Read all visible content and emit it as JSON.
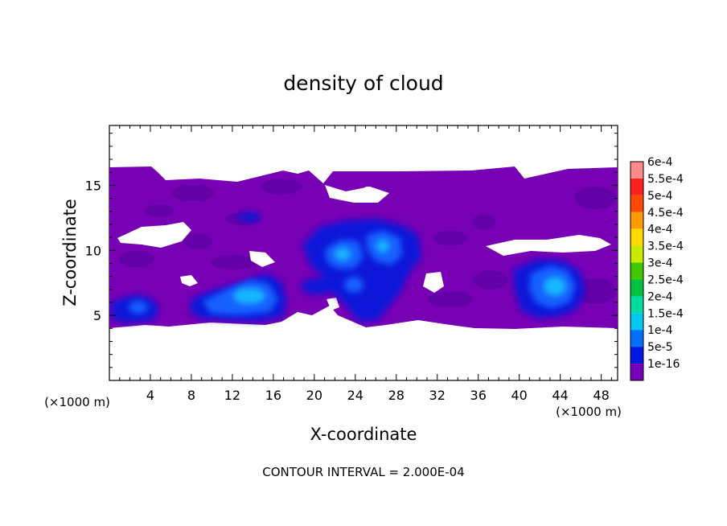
{
  "chart_data": {
    "type": "heatmap",
    "title": "density of cloud",
    "xlabel": "X-coordinate",
    "ylabel": "Z-coordinate",
    "x_unit": "(×1000 m)",
    "y_unit": "(×1000 m)",
    "xlim": [
      0,
      49.6
    ],
    "ylim": [
      0,
      19.6
    ],
    "x_ticks": [
      4,
      8,
      12,
      16,
      20,
      24,
      28,
      32,
      36,
      40,
      44,
      48
    ],
    "y_ticks": [
      5,
      10,
      15
    ],
    "footer": "CONTOUR INTERVAL = 2.000E-04",
    "colorbar": {
      "labels": [
        "6e-4",
        "5.5e-4",
        "5e-4",
        "4.5e-4",
        "4e-4",
        "3.5e-4",
        "3e-4",
        "2.5e-4",
        "2e-4",
        "1.5e-4",
        "1e-4",
        "5e-5",
        "1e-16"
      ],
      "colors": [
        "#ff8a8a",
        "#ff2020",
        "#ff4a00",
        "#ff9a00",
        "#ffd800",
        "#c8ea00",
        "#40c800",
        "#00c040",
        "#00dca0",
        "#00c8f0",
        "#0070ff",
        "#0018e0",
        "#7800b8"
      ]
    },
    "cloud_layer": {
      "z_bottom": 4.3,
      "z_top": 16.7,
      "base_color": "#7a00b0",
      "notes": "mostly background level 1e-16; densest cores ~1.5e-4 near x=14, x=24-27, x=44"
    }
  }
}
